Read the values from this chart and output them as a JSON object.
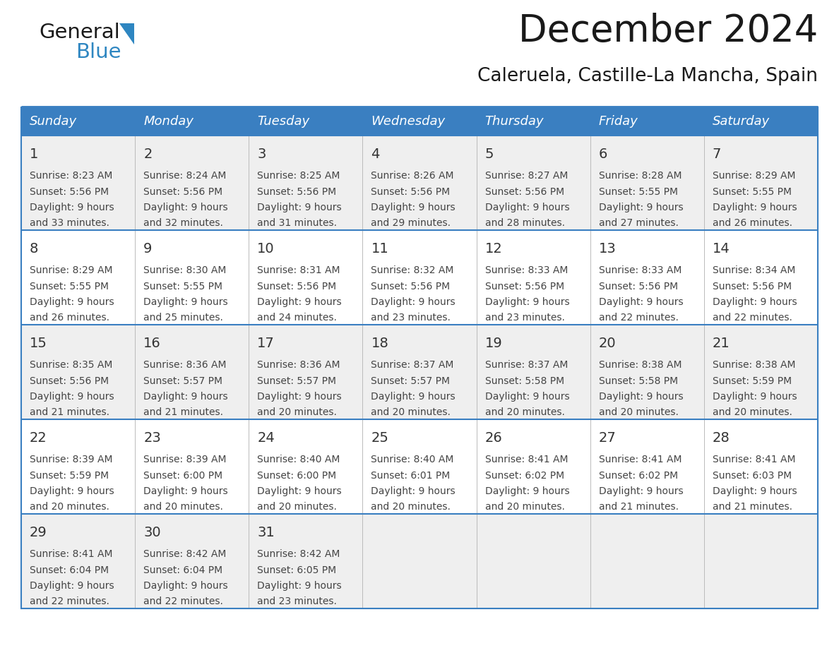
{
  "title": "December 2024",
  "subtitle": "Caleruela, Castille-La Mancha, Spain",
  "days_of_week": [
    "Sunday",
    "Monday",
    "Tuesday",
    "Wednesday",
    "Thursday",
    "Friday",
    "Saturday"
  ],
  "header_bg": "#3A7FC1",
  "header_text": "#FFFFFF",
  "row_bg_odd": "#EFEFEF",
  "row_bg_even": "#FFFFFF",
  "cell_border_color": "#3A7FC1",
  "row_border_color": "#3A7FC1",
  "day_num_color": "#333333",
  "day_data_color": "#444444",
  "title_color": "#1a1a1a",
  "subtitle_color": "#1a1a1a",
  "logo_text1_color": "#1a1a1a",
  "logo_text2_color": "#2E86C1",
  "logo_triangle_color": "#2E86C1",
  "calendar": [
    [
      {
        "day": 1,
        "sunrise": "8:23 AM",
        "sunset": "5:56 PM",
        "daylight_h": "9 hours",
        "daylight_m": "33 minutes."
      },
      {
        "day": 2,
        "sunrise": "8:24 AM",
        "sunset": "5:56 PM",
        "daylight_h": "9 hours",
        "daylight_m": "32 minutes."
      },
      {
        "day": 3,
        "sunrise": "8:25 AM",
        "sunset": "5:56 PM",
        "daylight_h": "9 hours",
        "daylight_m": "31 minutes."
      },
      {
        "day": 4,
        "sunrise": "8:26 AM",
        "sunset": "5:56 PM",
        "daylight_h": "9 hours",
        "daylight_m": "29 minutes."
      },
      {
        "day": 5,
        "sunrise": "8:27 AM",
        "sunset": "5:56 PM",
        "daylight_h": "9 hours",
        "daylight_m": "28 minutes."
      },
      {
        "day": 6,
        "sunrise": "8:28 AM",
        "sunset": "5:55 PM",
        "daylight_h": "9 hours",
        "daylight_m": "27 minutes."
      },
      {
        "day": 7,
        "sunrise": "8:29 AM",
        "sunset": "5:55 PM",
        "daylight_h": "9 hours",
        "daylight_m": "26 minutes."
      }
    ],
    [
      {
        "day": 8,
        "sunrise": "8:29 AM",
        "sunset": "5:55 PM",
        "daylight_h": "9 hours",
        "daylight_m": "26 minutes."
      },
      {
        "day": 9,
        "sunrise": "8:30 AM",
        "sunset": "5:55 PM",
        "daylight_h": "9 hours",
        "daylight_m": "25 minutes."
      },
      {
        "day": 10,
        "sunrise": "8:31 AM",
        "sunset": "5:56 PM",
        "daylight_h": "9 hours",
        "daylight_m": "24 minutes."
      },
      {
        "day": 11,
        "sunrise": "8:32 AM",
        "sunset": "5:56 PM",
        "daylight_h": "9 hours",
        "daylight_m": "23 minutes."
      },
      {
        "day": 12,
        "sunrise": "8:33 AM",
        "sunset": "5:56 PM",
        "daylight_h": "9 hours",
        "daylight_m": "23 minutes."
      },
      {
        "day": 13,
        "sunrise": "8:33 AM",
        "sunset": "5:56 PM",
        "daylight_h": "9 hours",
        "daylight_m": "22 minutes."
      },
      {
        "day": 14,
        "sunrise": "8:34 AM",
        "sunset": "5:56 PM",
        "daylight_h": "9 hours",
        "daylight_m": "22 minutes."
      }
    ],
    [
      {
        "day": 15,
        "sunrise": "8:35 AM",
        "sunset": "5:56 PM",
        "daylight_h": "9 hours",
        "daylight_m": "21 minutes."
      },
      {
        "day": 16,
        "sunrise": "8:36 AM",
        "sunset": "5:57 PM",
        "daylight_h": "9 hours",
        "daylight_m": "21 minutes."
      },
      {
        "day": 17,
        "sunrise": "8:36 AM",
        "sunset": "5:57 PM",
        "daylight_h": "9 hours",
        "daylight_m": "20 minutes."
      },
      {
        "day": 18,
        "sunrise": "8:37 AM",
        "sunset": "5:57 PM",
        "daylight_h": "9 hours",
        "daylight_m": "20 minutes."
      },
      {
        "day": 19,
        "sunrise": "8:37 AM",
        "sunset": "5:58 PM",
        "daylight_h": "9 hours",
        "daylight_m": "20 minutes."
      },
      {
        "day": 20,
        "sunrise": "8:38 AM",
        "sunset": "5:58 PM",
        "daylight_h": "9 hours",
        "daylight_m": "20 minutes."
      },
      {
        "day": 21,
        "sunrise": "8:38 AM",
        "sunset": "5:59 PM",
        "daylight_h": "9 hours",
        "daylight_m": "20 minutes."
      }
    ],
    [
      {
        "day": 22,
        "sunrise": "8:39 AM",
        "sunset": "5:59 PM",
        "daylight_h": "9 hours",
        "daylight_m": "20 minutes."
      },
      {
        "day": 23,
        "sunrise": "8:39 AM",
        "sunset": "6:00 PM",
        "daylight_h": "9 hours",
        "daylight_m": "20 minutes."
      },
      {
        "day": 24,
        "sunrise": "8:40 AM",
        "sunset": "6:00 PM",
        "daylight_h": "9 hours",
        "daylight_m": "20 minutes."
      },
      {
        "day": 25,
        "sunrise": "8:40 AM",
        "sunset": "6:01 PM",
        "daylight_h": "9 hours",
        "daylight_m": "20 minutes."
      },
      {
        "day": 26,
        "sunrise": "8:41 AM",
        "sunset": "6:02 PM",
        "daylight_h": "9 hours",
        "daylight_m": "20 minutes."
      },
      {
        "day": 27,
        "sunrise": "8:41 AM",
        "sunset": "6:02 PM",
        "daylight_h": "9 hours",
        "daylight_m": "21 minutes."
      },
      {
        "day": 28,
        "sunrise": "8:41 AM",
        "sunset": "6:03 PM",
        "daylight_h": "9 hours",
        "daylight_m": "21 minutes."
      }
    ],
    [
      {
        "day": 29,
        "sunrise": "8:41 AM",
        "sunset": "6:04 PM",
        "daylight_h": "9 hours",
        "daylight_m": "22 minutes."
      },
      {
        "day": 30,
        "sunrise": "8:42 AM",
        "sunset": "6:04 PM",
        "daylight_h": "9 hours",
        "daylight_m": "22 minutes."
      },
      {
        "day": 31,
        "sunrise": "8:42 AM",
        "sunset": "6:05 PM",
        "daylight_h": "9 hours",
        "daylight_m": "23 minutes."
      },
      null,
      null,
      null,
      null
    ]
  ]
}
